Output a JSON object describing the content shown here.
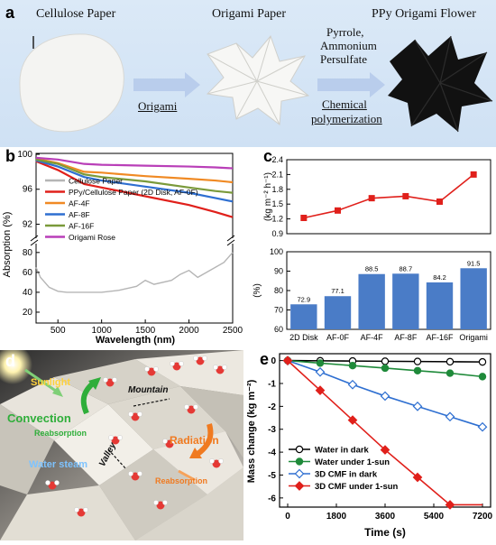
{
  "panel_a": {
    "label": "a",
    "cellulose_label": "Cellulose Paper",
    "origami_label": "Origami Paper",
    "flower_label": "PPy Origami Flower",
    "arrow1_label": "Origami",
    "reagents_line1": "Pyrrole,",
    "reagents_line2": "Ammonium",
    "reagents_line3": "Persulfate",
    "chem_line1": "Chemical",
    "chem_line2": "polymerization",
    "colors": {
      "background": "#d4e5f6",
      "flower": "#111111",
      "paper": "#f3f3f1"
    }
  },
  "panel_b": {
    "label": "b",
    "chart_data": {
      "type": "line",
      "xlabel": "Wavelength (nm)",
      "ylabel": "Absorption (%)",
      "xlim": [
        250,
        2500
      ],
      "xticks": [
        "500",
        "1000",
        "1500",
        "2000",
        "2500"
      ],
      "yticks_upper": [
        "100",
        "96",
        "92"
      ],
      "yticks_lower": [
        "80",
        "60",
        "40",
        "20"
      ],
      "legend_position": "lower-left",
      "series": [
        {
          "name": "Cellulose Paper",
          "color": "#b5b5b5",
          "x": [
            250,
            300,
            400,
            500,
            600,
            800,
            1000,
            1200,
            1400,
            1500,
            1600,
            1800,
            1900,
            2000,
            2100,
            2200,
            2300,
            2400,
            2500
          ],
          "y": [
            65,
            55,
            45,
            41,
            40,
            40,
            40,
            42,
            46,
            52,
            48,
            52,
            58,
            62,
            55,
            60,
            65,
            70,
            80
          ]
        },
        {
          "name": "PPy/Cellulose Paper (2D Disk, AF-0F)",
          "color": "#e0201b",
          "x": [
            250,
            500,
            800,
            1000,
            1500,
            2000,
            2300,
            2500
          ],
          "y": [
            99.2,
            98.2,
            96.6,
            96.2,
            95.2,
            94.2,
            93.4,
            92.8
          ]
        },
        {
          "name": "AF-4F",
          "color": "#f08a24",
          "x": [
            250,
            500,
            800,
            1000,
            1500,
            2000,
            2300,
            2500
          ],
          "y": [
            99.5,
            99.0,
            98.0,
            97.9,
            97.5,
            97.2,
            97.0,
            96.8
          ]
        },
        {
          "name": "AF-8F",
          "color": "#2e6fd1",
          "x": [
            250,
            500,
            800,
            1000,
            1500,
            2000,
            2300,
            2500
          ],
          "y": [
            99.3,
            98.6,
            97.4,
            97.0,
            96.3,
            95.6,
            95.0,
            94.6
          ]
        },
        {
          "name": "AF-16F",
          "color": "#7a9a3a",
          "x": [
            250,
            500,
            800,
            1000,
            1500,
            2000,
            2300,
            2500
          ],
          "y": [
            99.4,
            98.9,
            97.7,
            97.4,
            96.9,
            96.2,
            95.8,
            95.6
          ]
        },
        {
          "name": "Origami Rose",
          "color": "#b93fb8",
          "x": [
            250,
            500,
            800,
            1000,
            1500,
            2000,
            2300,
            2500
          ],
          "y": [
            99.6,
            99.4,
            98.9,
            98.8,
            98.7,
            98.6,
            98.5,
            98.4
          ]
        }
      ]
    }
  },
  "panel_c": {
    "label": "c",
    "chart_data": [
      {
        "type": "line",
        "ylabel": "(kg m⁻² h⁻¹)",
        "ylim": [
          0.9,
          2.4
        ],
        "yticks": [
          "2.4",
          "2.1",
          "1.8",
          "1.5",
          "1.2",
          "0.9"
        ],
        "categories": [
          "2D Disk",
          "AF-0F",
          "AF-4F",
          "AF-8F",
          "AF-16F",
          "Origami"
        ],
        "values": [
          1.22,
          1.37,
          1.62,
          1.66,
          1.55,
          2.1
        ],
        "color": "#e0201b"
      },
      {
        "type": "bar",
        "ylabel": "(%)",
        "ylim": [
          60,
          100
        ],
        "yticks": [
          "100",
          "90",
          "80",
          "70",
          "60"
        ],
        "categories": [
          "2D Disk",
          "AF-0F",
          "AF-4F",
          "AF-8F",
          "AF-16F",
          "Origami"
        ],
        "values": [
          72.9,
          77.1,
          88.5,
          88.7,
          84.2,
          91.5
        ],
        "data_labels": [
          "72.9",
          "77.1",
          "88.5",
          "88.7",
          "84.2",
          "91.5"
        ],
        "color": "#4a7cc7"
      }
    ]
  },
  "panel_d": {
    "label": "d",
    "sunlight": "Sunlight",
    "convection": "Convection",
    "reabsorption_left": "Reabsorption",
    "mountain": "Mountain",
    "radiation": "Radiation",
    "water_steam": "Water steam",
    "valley": "Valley",
    "reabsorption_right": "Reabsorption",
    "colors": {
      "convection": "#2fae3a",
      "radiation": "#f07a20",
      "steam": "#7ec3ff",
      "sunlight": "#ffd23c"
    }
  },
  "panel_e": {
    "label": "e",
    "chart_data": {
      "type": "line",
      "xlabel": "Time (s)",
      "ylabel": "Mass change (kg m⁻²)",
      "xlim": [
        -300,
        7500
      ],
      "ylim": [
        -6.4,
        0.3
      ],
      "xticks": [
        0,
        1800,
        3600,
        5400,
        7200
      ],
      "yticks": [
        0,
        -1,
        -2,
        -3,
        -4,
        -5,
        -6
      ],
      "legend_position": "lower-left",
      "series": [
        {
          "name": "Water in dark",
          "color": "#000000",
          "marker": "circle-open",
          "x": [
            0,
            1200,
            2400,
            3600,
            4800,
            6000,
            7200
          ],
          "y": [
            0,
            -0.01,
            -0.02,
            -0.03,
            -0.04,
            -0.05,
            -0.06
          ]
        },
        {
          "name": "Water under 1-sun",
          "color": "#1f8a3a",
          "marker": "circle-filled",
          "x": [
            0,
            1200,
            2400,
            3600,
            4800,
            6000,
            7200
          ],
          "y": [
            0,
            -0.11,
            -0.22,
            -0.33,
            -0.44,
            -0.55,
            -0.7
          ]
        },
        {
          "name": "3D CMF in dark",
          "color": "#2e6fd1",
          "marker": "diamond-open",
          "x": [
            0,
            1200,
            2400,
            3600,
            4800,
            6000,
            7200
          ],
          "y": [
            0,
            -0.5,
            -1.05,
            -1.55,
            -2.0,
            -2.45,
            -2.9
          ]
        },
        {
          "name": "3D CMF under 1-sun",
          "color": "#e0201b",
          "marker": "diamond-filled",
          "x": [
            0,
            1200,
            2400,
            3600,
            4800,
            6000,
            7200
          ],
          "y": [
            0,
            -1.3,
            -2.6,
            -3.9,
            -5.1,
            -6.3,
            -6.3
          ]
        }
      ]
    }
  }
}
